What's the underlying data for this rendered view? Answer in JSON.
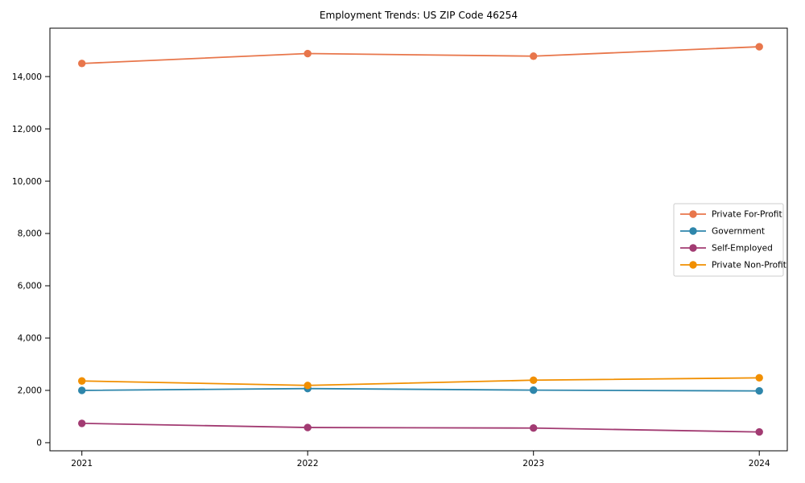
{
  "chart_data": {
    "type": "line",
    "title": "Employment Trends: US ZIP Code 46254",
    "x": [
      "2021",
      "2022",
      "2023",
      "2024"
    ],
    "series": [
      {
        "name": "Private For-Profit",
        "color": "#E8764B",
        "values": [
          14500,
          14880,
          14780,
          15140
        ]
      },
      {
        "name": "Government",
        "color": "#2E86AB",
        "values": [
          2000,
          2070,
          2010,
          1980
        ]
      },
      {
        "name": "Self-Employed",
        "color": "#A23B72",
        "values": [
          740,
          580,
          560,
          410
        ]
      },
      {
        "name": "Private Non-Profit",
        "color": "#F18F01",
        "values": [
          2360,
          2190,
          2390,
          2480
        ]
      }
    ],
    "xlabel": "",
    "ylabel": "",
    "ylim": [
      -310,
      15850
    ],
    "yticks": {
      "values": [
        0,
        2000,
        4000,
        6000,
        8000,
        10000,
        12000,
        14000
      ],
      "labels": [
        "0",
        "2,000",
        "4,000",
        "6,000",
        "8,000",
        "10,000",
        "12,000",
        "14,000"
      ]
    },
    "legend": {
      "position": "center-right",
      "entries": [
        "Private For-Profit",
        "Government",
        "Self-Employed",
        "Private Non-Profit"
      ]
    },
    "grid": false,
    "marker": "circle",
    "frame_color": "#000000",
    "text_color": "#000000",
    "legend_border_color": "#cccccc",
    "background_color": "#ffffff"
  }
}
